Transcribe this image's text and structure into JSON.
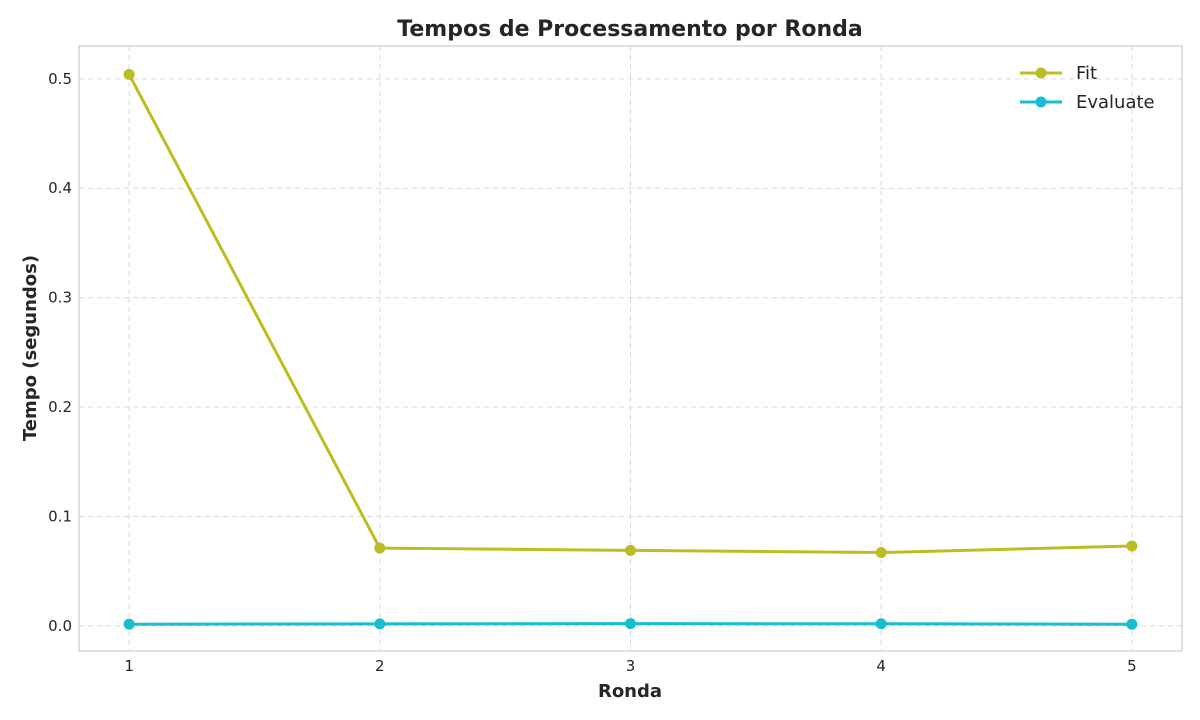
{
  "chart_data": {
    "type": "line",
    "title": "Tempos de Processamento por Ronda",
    "xlabel": "Ronda",
    "ylabel": "Tempo (segundos)",
    "x": [
      1,
      2,
      3,
      4,
      5
    ],
    "x_ticks": [
      "1",
      "2",
      "3",
      "4",
      "5"
    ],
    "y_ticks": [
      "0.0",
      "0.1",
      "0.2",
      "0.3",
      "0.4",
      "0.5"
    ],
    "xlim": [
      0.8,
      5.2
    ],
    "ylim": [
      -0.023,
      0.53
    ],
    "grid": true,
    "legend_position": "top-right",
    "series": [
      {
        "name": "Fit",
        "color": "#bcbd22",
        "values": [
          0.504,
          0.071,
          0.069,
          0.067,
          0.073
        ]
      },
      {
        "name": "Evaluate",
        "color": "#17becf",
        "values": [
          0.0015,
          0.0018,
          0.002,
          0.0019,
          0.0015
        ]
      }
    ]
  }
}
